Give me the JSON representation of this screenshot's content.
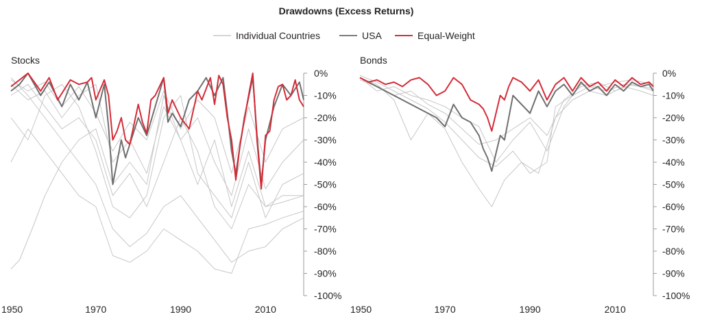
{
  "chart_data": {
    "type": "line",
    "title": "Drawdowns (Excess Returns)",
    "legend": {
      "placement": "top-center",
      "entries": [
        {
          "name": "Individual Countries",
          "color": "#c6c6c6"
        },
        {
          "name": "USA",
          "color": "#7a7a7a"
        },
        {
          "name": "Equal-Weight",
          "color": "#d42a36"
        }
      ]
    },
    "colors": {
      "individual": "#c6c6c6",
      "usa": "#6e6e6e",
      "equal_weight": "#d42a36",
      "axis": "#9a9a9a"
    },
    "panels": [
      {
        "title": "Stocks",
        "xlim": [
          1950,
          2019
        ],
        "ylim": [
          -100,
          0
        ],
        "x_ticks": [
          1950,
          1970,
          1990,
          2010
        ],
        "y_ticks": [
          "0%",
          "-10%",
          "-20%",
          "-30%",
          "-40%",
          "-50%",
          "-60%",
          "-70%",
          "-80%",
          "-90%",
          "-100%"
        ],
        "series": [
          {
            "name": "Equal-Weight",
            "x": [
              1950,
              1952,
              1954,
              1957,
              1959,
              1961,
              1962,
              1964,
              1966,
              1968,
              1969,
              1970,
              1972,
              1973,
              1974,
              1975,
              1976,
              1977,
              1978,
              1980,
              1981,
              1982,
              1983,
              1984,
              1986,
              1987,
              1988,
              1990,
              1992,
              1994,
              1995,
              1997,
              1998,
              1999,
              2000,
              2001,
              2002,
              2003,
              2004,
              2006,
              2007,
              2008,
              2009,
              2010,
              2011,
              2012,
              2013,
              2014,
              2015,
              2016,
              2017,
              2018,
              2019
            ],
            "y": [
              -6,
              -3,
              0,
              -8,
              -2,
              -12,
              -9,
              -3,
              -5,
              -4,
              -2,
              -12,
              -3,
              -10,
              -30,
              -26,
              -20,
              -30,
              -32,
              -14,
              -22,
              -27,
              -12,
              -10,
              -2,
              -18,
              -12,
              -20,
              -25,
              -8,
              -12,
              -2,
              -14,
              -1,
              -5,
              -20,
              -30,
              -48,
              -32,
              -10,
              0,
              -30,
              -52,
              -28,
              -26,
              -12,
              -6,
              -5,
              -12,
              -10,
              -3,
              -12,
              -15
            ]
          },
          {
            "name": "USA",
            "x": [
              1950,
              1952,
              1954,
              1957,
              1959,
              1962,
              1964,
              1966,
              1968,
              1970,
              1972,
              1973,
              1974,
              1975,
              1976,
              1977,
              1978,
              1980,
              1982,
              1984,
              1986,
              1987,
              1988,
              1990,
              1992,
              1994,
              1996,
              1998,
              2000,
              2001,
              2002,
              2003,
              2005,
              2007,
              2008,
              2009,
              2010,
              2012,
              2014,
              2016,
              2018,
              2019
            ],
            "y": [
              -8,
              -5,
              0,
              -10,
              -4,
              -15,
              -5,
              -12,
              -4,
              -20,
              -5,
              -24,
              -50,
              -40,
              -30,
              -38,
              -32,
              -20,
              -28,
              -15,
              -2,
              -22,
              -18,
              -24,
              -12,
              -8,
              -2,
              -10,
              -2,
              -18,
              -35,
              -45,
              -20,
              -2,
              -28,
              -50,
              -30,
              -15,
              -5,
              -10,
              -4,
              -12
            ]
          },
          {
            "name": "Individual Countries",
            "x": [
              1950,
              1952,
              1955,
              1958,
              1962,
              1966,
              1970,
              1974,
              1978,
              1982,
              1986,
              1990,
              1994,
              1998,
              2002,
              2006,
              2010,
              2014,
              2019
            ],
            "y": [
              -88,
              -84,
              -70,
              -55,
              -40,
              -30,
              -25,
              -50,
              -40,
              -50,
              -10,
              -30,
              -50,
              -30,
              -60,
              -35,
              -60,
              -55,
              -55
            ]
          },
          {
            "name": "Individual Countries",
            "x": [
              1950,
              1954,
              1958,
              1962,
              1966,
              1970,
              1974,
              1978,
              1982,
              1986,
              1990,
              1994,
              1998,
              2002,
              2006,
              2010,
              2014,
              2019
            ],
            "y": [
              -40,
              -25,
              -35,
              -45,
              -55,
              -60,
              -82,
              -85,
              -80,
              -70,
              -75,
              -80,
              -88,
              -90,
              -70,
              -68,
              -65,
              -62
            ]
          },
          {
            "name": "Individual Countries",
            "x": [
              1950,
              1954,
              1958,
              1962,
              1966,
              1970,
              1974,
              1978,
              1982,
              1986,
              1990,
              1994,
              1998,
              2002,
              2006,
              2010,
              2014,
              2019
            ],
            "y": [
              -2,
              -10,
              -20,
              -30,
              -40,
              -50,
              -70,
              -78,
              -72,
              -60,
              -55,
              -65,
              -75,
              -85,
              -80,
              -78,
              -70,
              -65
            ]
          },
          {
            "name": "Individual Countries",
            "x": [
              1950,
              1954,
              1958,
              1962,
              1966,
              1970,
              1974,
              1978,
              1982,
              1986,
              1990,
              1994,
              1998,
              2002,
              2006,
              2010,
              2014,
              2019
            ],
            "y": [
              -10,
              -5,
              -15,
              -25,
              -20,
              -30,
              -55,
              -45,
              -60,
              -40,
              -20,
              -35,
              -60,
              -70,
              -50,
              -60,
              -58,
              -55
            ]
          },
          {
            "name": "Individual Countries",
            "x": [
              1950,
              1954,
              1958,
              1962,
              1966,
              1970,
              1974,
              1978,
              1982,
              1986,
              1990,
              1994,
              1998,
              2002,
              2006,
              2010,
              2014,
              2019
            ],
            "y": [
              -20,
              -30,
              -10,
              -5,
              -15,
              -35,
              -60,
              -65,
              -55,
              -20,
              -10,
              -45,
              -55,
              -65,
              -40,
              -65,
              -50,
              -45
            ]
          },
          {
            "name": "Individual Countries",
            "x": [
              1950,
              1954,
              1958,
              1962,
              1966,
              1970,
              1974,
              1978,
              1982,
              1986,
              1990,
              1994,
              1998,
              2002,
              2006,
              2010,
              2014,
              2019
            ],
            "y": [
              -5,
              -12,
              -8,
              -20,
              -10,
              -5,
              -40,
              -30,
              -45,
              -15,
              -30,
              -20,
              -40,
              -55,
              -25,
              -52,
              -40,
              -30
            ]
          },
          {
            "name": "Individual Countries",
            "x": [
              1950,
              1954,
              1958,
              1962,
              1966,
              1970,
              1974,
              1978,
              1982,
              1986,
              1990,
              1994,
              1998,
              2002,
              2006,
              2010,
              2014,
              2019
            ],
            "y": [
              -3,
              -8,
              -4,
              -15,
              -6,
              -18,
              -35,
              -22,
              -30,
              -8,
              -25,
              -12,
              -20,
              -45,
              -15,
              -40,
              -25,
              -20
            ]
          }
        ]
      },
      {
        "title": "Bonds",
        "xlim": [
          1950,
          2019
        ],
        "ylim": [
          -100,
          0
        ],
        "x_ticks": [
          1950,
          1970,
          1990,
          2010
        ],
        "y_ticks": [
          "0%",
          "-10%",
          "-20%",
          "-30%",
          "-40%",
          "-50%",
          "-60%",
          "-70%",
          "-80%",
          "-90%",
          "-100%"
        ],
        "series": [
          {
            "name": "Equal-Weight",
            "x": [
              1950,
              1952,
              1954,
              1956,
              1958,
              1960,
              1962,
              1964,
              1966,
              1968,
              1970,
              1972,
              1974,
              1976,
              1978,
              1979,
              1980,
              1981,
              1982,
              1983,
              1984,
              1985,
              1986,
              1988,
              1990,
              1992,
              1994,
              1996,
              1998,
              2000,
              2002,
              2004,
              2006,
              2008,
              2010,
              2012,
              2014,
              2016,
              2018,
              2019
            ],
            "y": [
              -2,
              -4,
              -3,
              -5,
              -4,
              -6,
              -3,
              -2,
              -5,
              -10,
              -8,
              -2,
              -5,
              -12,
              -14,
              -16,
              -20,
              -26,
              -18,
              -10,
              -12,
              -6,
              -2,
              -4,
              -8,
              -3,
              -12,
              -5,
              -2,
              -8,
              -2,
              -6,
              -4,
              -8,
              -3,
              -6,
              -2,
              -5,
              -4,
              -6
            ]
          },
          {
            "name": "USA",
            "x": [
              1950,
              1952,
              1954,
              1956,
              1958,
              1960,
              1962,
              1964,
              1966,
              1968,
              1970,
              1972,
              1974,
              1976,
              1978,
              1979,
              1980,
              1981,
              1982,
              1983,
              1984,
              1985,
              1986,
              1988,
              1990,
              1992,
              1994,
              1996,
              1998,
              2000,
              2002,
              2004,
              2006,
              2008,
              2010,
              2012,
              2014,
              2016,
              2018,
              2019
            ],
            "y": [
              -2,
              -4,
              -6,
              -8,
              -10,
              -12,
              -14,
              -16,
              -18,
              -20,
              -24,
              -14,
              -20,
              -22,
              -28,
              -34,
              -38,
              -44,
              -36,
              -28,
              -30,
              -20,
              -10,
              -14,
              -18,
              -8,
              -15,
              -8,
              -5,
              -10,
              -4,
              -8,
              -6,
              -10,
              -5,
              -8,
              -4,
              -6,
              -5,
              -8
            ]
          },
          {
            "name": "Individual Countries",
            "x": [
              1950,
              1954,
              1958,
              1962,
              1966,
              1970,
              1974,
              1978,
              1981,
              1984,
              1988,
              1992,
              1996,
              2000,
              2004,
              2008,
              2012,
              2016,
              2019
            ],
            "y": [
              -2,
              -5,
              -12,
              -30,
              -18,
              -25,
              -40,
              -52,
              -60,
              -48,
              -40,
              -45,
              -20,
              -12,
              -8,
              -10,
              -6,
              -8,
              -10
            ]
          },
          {
            "name": "Individual Countries",
            "x": [
              1950,
              1954,
              1958,
              1962,
              1966,
              1970,
              1974,
              1978,
              1982,
              1986,
              1990,
              1994,
              1996,
              2000,
              2004,
              2008,
              2012,
              2016,
              2019
            ],
            "y": [
              -1,
              -4,
              -8,
              -12,
              -16,
              -22,
              -30,
              -38,
              -42,
              -35,
              -45,
              -40,
              -15,
              -10,
              -6,
              -8,
              -5,
              -6,
              -8
            ]
          },
          {
            "name": "Individual Countries",
            "x": [
              1950,
              1954,
              1958,
              1962,
              1966,
              1970,
              1974,
              1978,
              1982,
              1986,
              1990,
              1994,
              1998,
              2002,
              2006,
              2010,
              2014,
              2019
            ],
            "y": [
              -3,
              -6,
              -10,
              -8,
              -14,
              -18,
              -25,
              -32,
              -30,
              -25,
              -20,
              -28,
              -12,
              -6,
              -4,
              -8,
              -5,
              -7
            ]
          },
          {
            "name": "Individual Countries",
            "x": [
              1950,
              1954,
              1958,
              1962,
              1966,
              1970,
              1974,
              1978,
              1982,
              1986,
              1990,
              1994,
              1998,
              2002,
              2006,
              2010,
              2014,
              2019
            ],
            "y": [
              -2,
              -8,
              -6,
              -10,
              -12,
              -15,
              -20,
              -24,
              -40,
              -30,
              -22,
              -35,
              -15,
              -5,
              -6,
              -4,
              -3,
              -5
            ]
          }
        ]
      }
    ]
  }
}
